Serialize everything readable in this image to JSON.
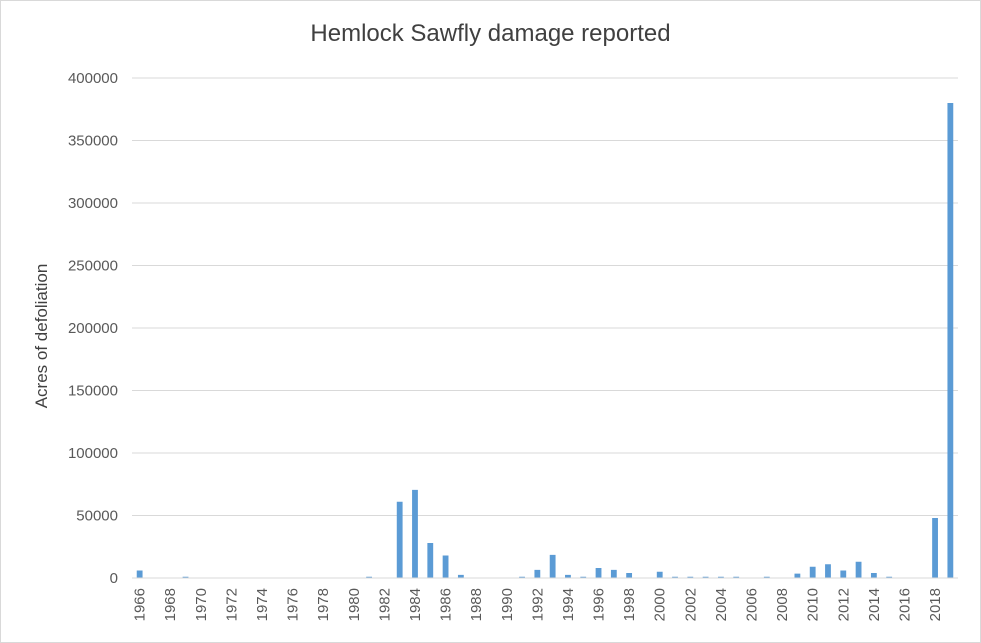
{
  "chart_data": {
    "type": "bar",
    "title": "Hemlock Sawfly damage reported",
    "xlabel": "",
    "ylabel": "Acres of defoliation",
    "ylim": [
      0,
      400000
    ],
    "yticks": [
      0,
      50000,
      100000,
      150000,
      200000,
      250000,
      300000,
      350000,
      400000
    ],
    "xtick_labels": [
      "1966",
      "1968",
      "1970",
      "1972",
      "1974",
      "1976",
      "1978",
      "1980",
      "1982",
      "1984",
      "1986",
      "1988",
      "1990",
      "1992",
      "1994",
      "1996",
      "1998",
      "2000",
      "2002",
      "2004",
      "2006",
      "2008",
      "2010",
      "2012",
      "2014",
      "2016",
      "2018"
    ],
    "grid": true,
    "legend": "none",
    "bar_color": "#5b9bd5",
    "categories": [
      1966,
      1967,
      1968,
      1969,
      1970,
      1971,
      1972,
      1973,
      1974,
      1975,
      1976,
      1977,
      1978,
      1979,
      1980,
      1981,
      1982,
      1983,
      1984,
      1985,
      1986,
      1987,
      1988,
      1989,
      1990,
      1991,
      1992,
      1993,
      1994,
      1995,
      1996,
      1997,
      1998,
      1999,
      2000,
      2001,
      2002,
      2003,
      2004,
      2005,
      2006,
      2007,
      2008,
      2009,
      2010,
      2011,
      2012,
      2013,
      2014,
      2015,
      2016,
      2017,
      2018,
      2019
    ],
    "values": [
      6000,
      0,
      0,
      1000,
      0,
      0,
      0,
      0,
      0,
      0,
      0,
      0,
      0,
      0,
      0,
      1000,
      0,
      61000,
      70500,
      28000,
      18000,
      2500,
      0,
      0,
      0,
      1000,
      6500,
      18500,
      2500,
      1000,
      8000,
      6500,
      4000,
      0,
      5000,
      1000,
      1000,
      1000,
      1000,
      1000,
      0,
      1000,
      0,
      3500,
      9000,
      11000,
      6000,
      13000,
      4000,
      1000,
      0,
      0,
      48000,
      380000
    ]
  }
}
